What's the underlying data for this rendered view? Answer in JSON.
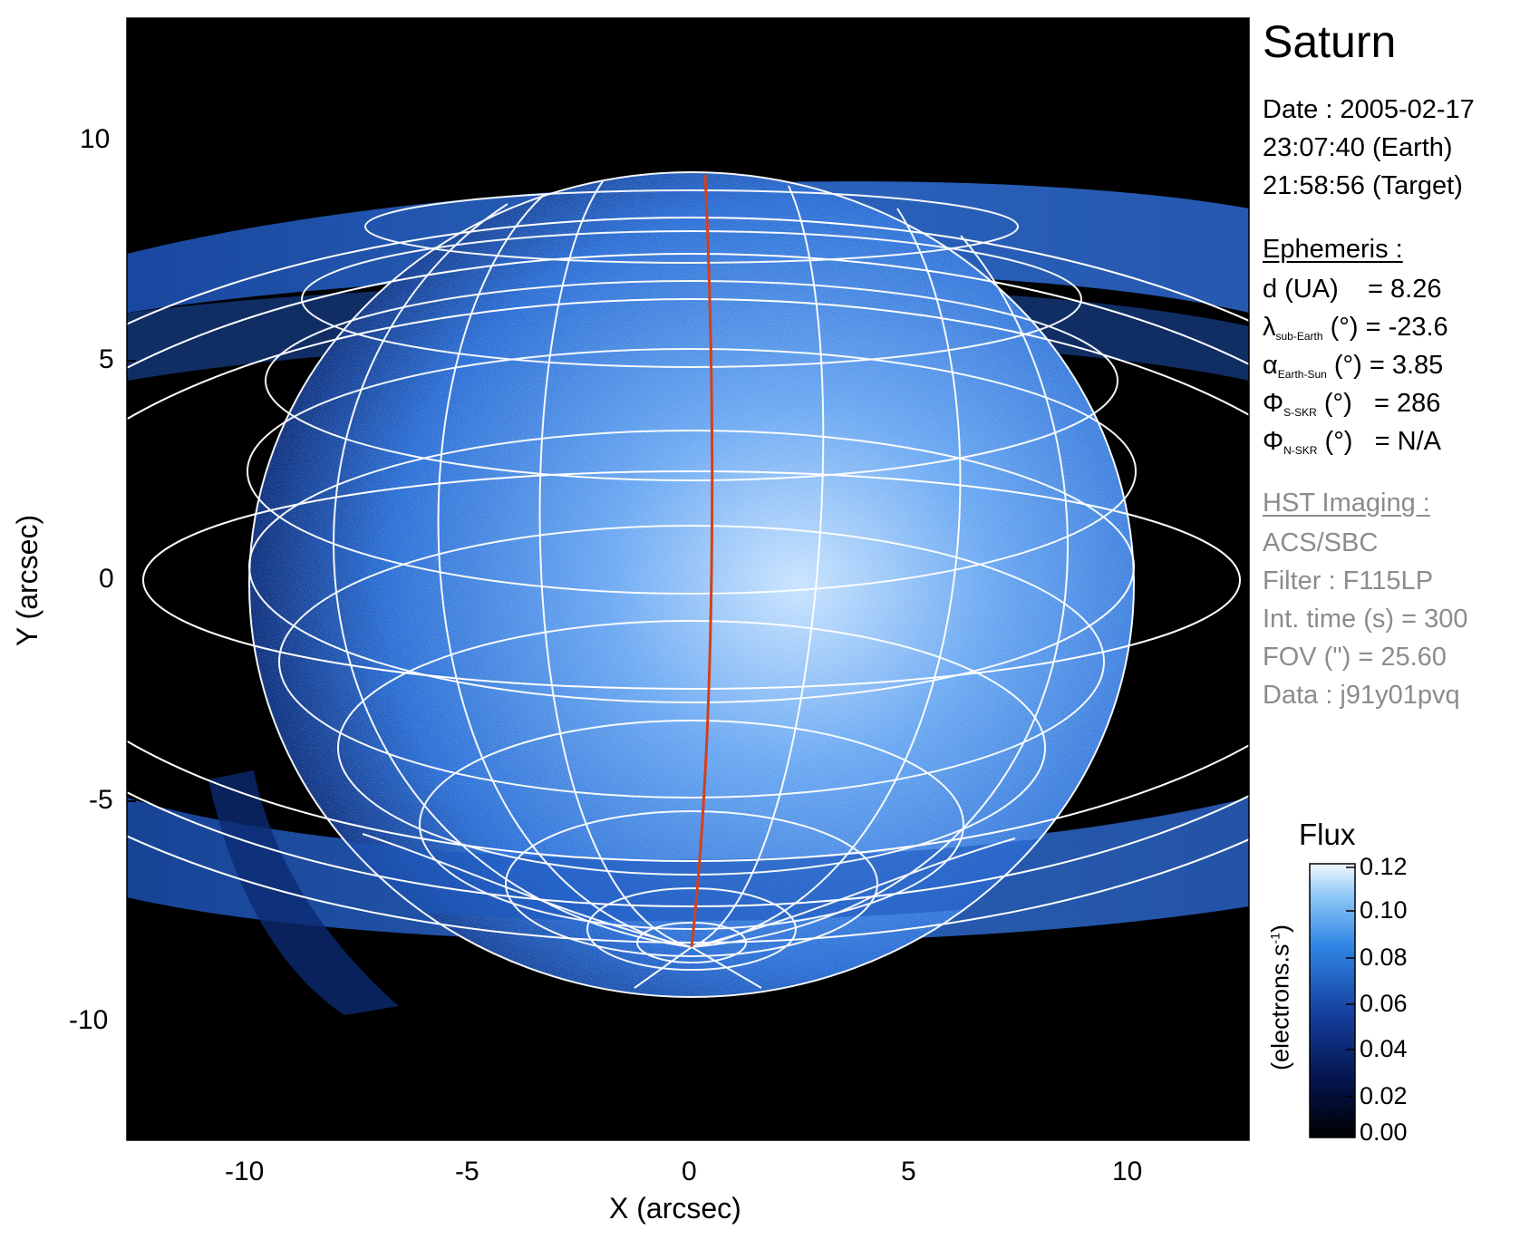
{
  "figure": {
    "title": "Saturn",
    "date_line": "Date : 2005-02-17",
    "earth_time": "23:07:40 (Earth)",
    "target_time": "21:58:56 (Target)"
  },
  "ephemeris": {
    "heading": "Ephemeris :",
    "d_label": "d (UA)",
    "d_value": "= 8.26",
    "lambda_symbol": "λ",
    "lambda_sub": "sub-Earth",
    "lambda_unit": "(°)",
    "lambda_value": "= -23.6",
    "alpha_symbol": "α",
    "alpha_sub": "Earth-Sun",
    "alpha_unit": "(°)",
    "alpha_value": "= 3.85",
    "phi_s_symbol": "Φ",
    "phi_s_sub": "S-SKR",
    "phi_s_unit": "(°)",
    "phi_s_value": "= 286",
    "phi_n_symbol": "Φ",
    "phi_n_sub": "N-SKR",
    "phi_n_unit": "(°)",
    "phi_n_value": "= N/A"
  },
  "imaging": {
    "heading": "HST Imaging :",
    "instrument": "ACS/SBC",
    "filter": "Filter : F115LP",
    "int_time": "Int. time (s) = 300",
    "fov": "FOV (\") = 25.60",
    "data_id": "Data : j91y01pvq"
  },
  "axes": {
    "xlabel": "X (arcsec)",
    "ylabel": "Y (arcsec)",
    "x_ticks": [
      "-10",
      "-5",
      "0",
      "5",
      "10"
    ],
    "y_ticks": [
      "10",
      "5",
      "0",
      "-5",
      "-10"
    ],
    "x_range": [
      -12.8,
      12.8
    ],
    "y_range": [
      -12.8,
      12.8
    ]
  },
  "colorbar": {
    "title": "Flux",
    "unit_label": "(electrons.s",
    "unit_sup": "-1",
    "unit_close": ")",
    "ticks": [
      "0.12",
      "0.10",
      "0.08",
      "0.06",
      "0.04",
      "0.02",
      "0.00"
    ],
    "range": [
      0.0,
      0.12
    ]
  },
  "colors": {
    "background": "#000000",
    "planet_blue": "#2a6fd8",
    "grid": "#ffffff",
    "meridian": "#d2401e",
    "info_grey": "#8c8c8c"
  }
}
